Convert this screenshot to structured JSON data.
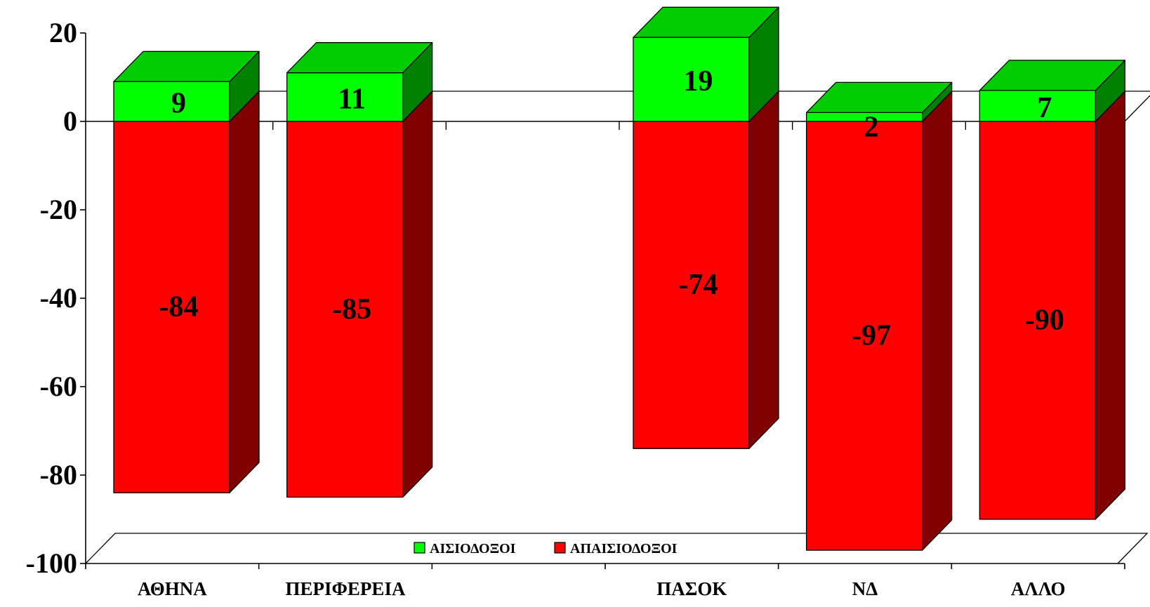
{
  "chart_data": {
    "type": "bar",
    "stacked": true,
    "style": "3d",
    "categories": [
      "ΑΘΗΝΑ",
      "ΠΕΡΙΦΕΡΕΙΑ",
      "",
      "ΠΑΣΟΚ",
      "ΝΔ",
      "ΑΛΛΟ"
    ],
    "series": [
      {
        "name": "ΑΙΣΙΟΔΟΞΟΙ",
        "values": [
          9,
          11,
          null,
          19,
          2,
          7
        ],
        "color": "#00ff00"
      },
      {
        "name": "ΑΠΑΙΣΙΟΔΟΞΟΙ",
        "values": [
          -84,
          -85,
          null,
          -74,
          -97,
          -90
        ],
        "color": "#ff0000"
      }
    ],
    "data_labels": [
      [
        "9",
        "11",
        "",
        "19",
        "2",
        "7"
      ],
      [
        "-84",
        "-85",
        "",
        "-74",
        "-97",
        "-90"
      ]
    ],
    "ylim": [
      -100,
      20
    ],
    "yticks": [
      20,
      0,
      -20,
      -40,
      -60,
      -80,
      -100
    ],
    "ytick_labels": [
      "20",
      "0",
      "-20",
      "-40",
      "-60",
      "-80",
      "-100"
    ],
    "legend_position": "bottom",
    "grid": false,
    "title": "",
    "xlabel": "",
    "ylabel": ""
  },
  "colors": {
    "positive_front": "#00ff00",
    "positive_top": "#00cc00",
    "positive_side": "#008000",
    "negative_front": "#ff0000",
    "negative_side": "#800000"
  }
}
